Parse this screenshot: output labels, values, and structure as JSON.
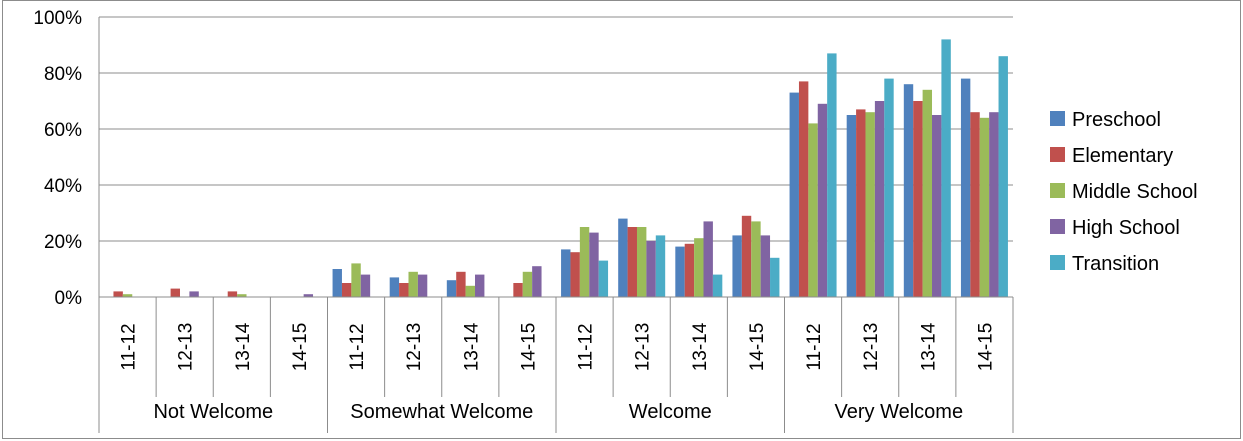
{
  "chart_data": {
    "type": "bar",
    "title": "",
    "xlabel": "",
    "ylabel": "",
    "ylim": [
      0,
      100
    ],
    "yticks": [
      "0%",
      "20%",
      "40%",
      "60%",
      "80%",
      "100%"
    ],
    "groups": [
      "Not Welcome",
      "Somewhat Welcome",
      "Welcome",
      "Very Welcome"
    ],
    "years": [
      "11-12",
      "12-13",
      "13-14",
      "14-15"
    ],
    "legend_position": "right",
    "series": [
      {
        "name": "Preschool",
        "color": "#4F81BD",
        "values": [
          0,
          0,
          0,
          0,
          10,
          7,
          6,
          0,
          17,
          28,
          18,
          22,
          73,
          65,
          76,
          78
        ]
      },
      {
        "name": "Elementary",
        "color": "#C0504D",
        "values": [
          2,
          3,
          2,
          0,
          5,
          5,
          9,
          5,
          16,
          25,
          19,
          29,
          77,
          67,
          70,
          66
        ]
      },
      {
        "name": "Middle School",
        "color": "#9BBB59",
        "values": [
          1,
          0,
          1,
          0,
          12,
          9,
          4,
          9,
          25,
          25,
          21,
          27,
          62,
          66,
          74,
          64
        ]
      },
      {
        "name": "High School",
        "color": "#8064A2",
        "values": [
          0,
          2,
          0,
          1,
          8,
          8,
          8,
          11,
          23,
          20,
          27,
          22,
          69,
          70,
          65,
          66
        ]
      },
      {
        "name": "Transition",
        "color": "#4BACC6",
        "values": [
          0,
          0,
          0,
          0,
          0,
          0,
          0,
          0,
          13,
          22,
          8,
          14,
          87,
          78,
          92,
          86
        ]
      }
    ]
  }
}
